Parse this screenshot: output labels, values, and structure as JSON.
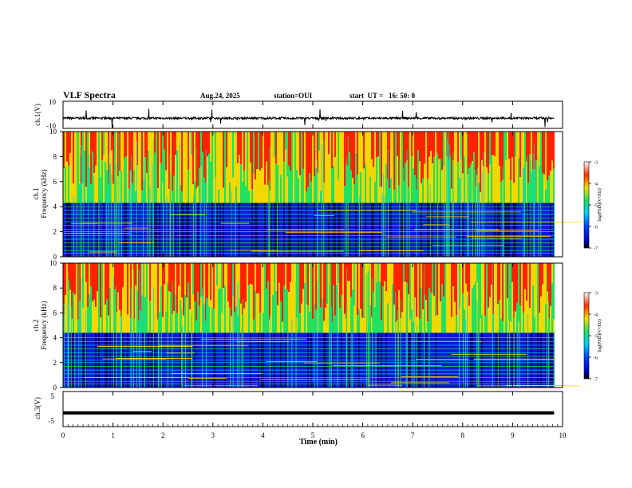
{
  "header": {
    "title": "VLF Spectra",
    "date": "Aug.24, 2025",
    "station": "station=OUI",
    "start": "start  UT =   16: 50: 0"
  },
  "chart_data": [
    {
      "type": "line",
      "id": "ch1_waveform",
      "ylabel": "ch.1(V)",
      "ylim": [
        -10,
        10
      ],
      "yticks": [
        10,
        -10
      ],
      "baseline": -2.5,
      "x_range_min": [
        0,
        9.83
      ]
    },
    {
      "type": "heatmap",
      "id": "ch1_spectrogram",
      "ylabel": "Frequency (kHz)",
      "channel_label": "ch.1",
      "ylim": [
        0,
        10
      ],
      "yticks": [
        0,
        2,
        4,
        6,
        8,
        10
      ],
      "colorbar": {
        "label": "log(PSD)(V²/Hz)",
        "range": [
          -7,
          -3
        ],
        "ticks": [
          -3,
          -4,
          -5,
          -6,
          -7
        ]
      },
      "band_edge_khz": 4.3
    },
    {
      "type": "heatmap",
      "id": "ch2_spectrogram",
      "ylabel": "Frequency (kHz)",
      "channel_label": "ch.2",
      "ylim": [
        0,
        10
      ],
      "yticks": [
        0,
        2,
        4,
        6,
        8,
        10
      ],
      "colorbar": {
        "label": "log(PSD)(V²/Hz)",
        "range": [
          -7,
          -3
        ],
        "ticks": [
          -3,
          -4,
          -5,
          -6,
          -7
        ]
      },
      "band_edge_khz": 4.4
    },
    {
      "type": "line",
      "id": "ch3_waveform",
      "ylabel": "ch.3(V)",
      "ylim": [
        -5,
        5
      ],
      "yticks": [
        5,
        -5
      ],
      "baseline": -1.1,
      "x_range_min": [
        0,
        9.83
      ]
    }
  ],
  "xaxis": {
    "label": "Time (min)",
    "xlim": [
      0,
      10
    ],
    "ticks": [
      "0",
      "1",
      "2",
      "3",
      "4",
      "5",
      "6",
      "7",
      "8",
      "9",
      "10"
    ]
  },
  "colors": {
    "red": "#ff2200",
    "yellow": "#f2d800",
    "green": "#22e060",
    "cyan": "#00d8e8",
    "blue": "#0a1ad0",
    "navy": "#00006a"
  }
}
